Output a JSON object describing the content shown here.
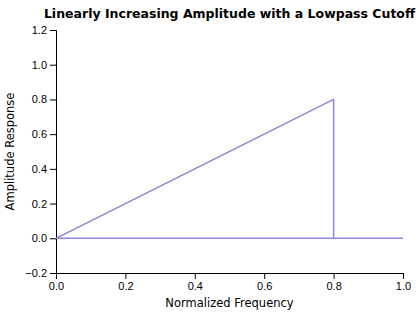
{
  "chart_data": {
    "type": "line",
    "title": "Linearly Increasing Amplitude with a Lowpass Cutoff",
    "x_label": "Normalized Frequency",
    "y_label": "Amplitude Response",
    "x": [
      0,
      0.8,
      0.8,
      0,
      1.0
    ],
    "values": [
      0,
      0.8,
      0,
      0,
      0
    ],
    "color": "#8888dd",
    "xlim": [
      0,
      1
    ],
    "ylim": [
      -0.2,
      1.2
    ],
    "xticks": [
      {
        "value": 0,
        "label": "0.0"
      },
      0.2,
      0.4,
      0.6,
      0.8,
      {
        "value": 1.0,
        "label": "1.0"
      }
    ],
    "yticks": [
      {
        "value": -0.2,
        "label": "−0.2"
      },
      {
        "value": 0,
        "label": "0.0"
      },
      0.2,
      0.4,
      0.6,
      0.8,
      {
        "value": 1.0,
        "label": "1.0"
      },
      1.2
    ],
    "grid": false
  }
}
